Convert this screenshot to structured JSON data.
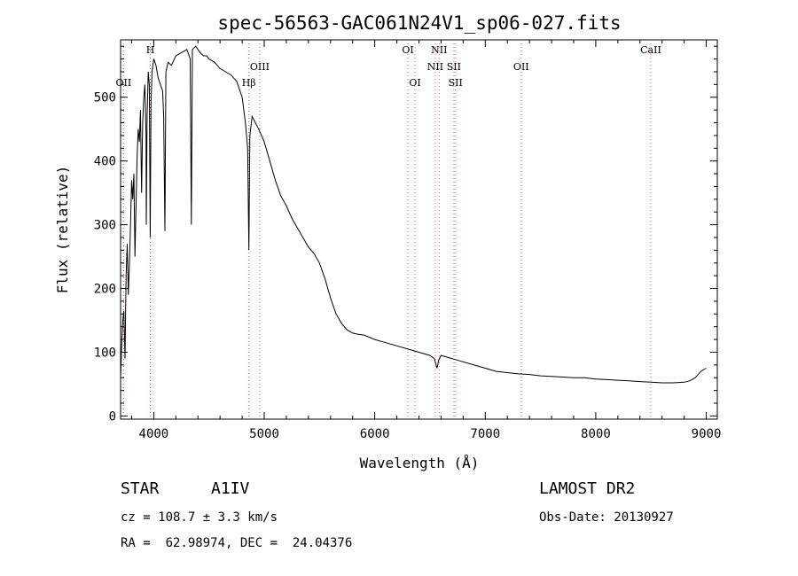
{
  "chart_data": {
    "type": "line",
    "title": "spec-56563-GAC061N24V1_sp06-027.fits",
    "xlabel": "Wavelength (Å)",
    "ylabel": "Flux (relative)",
    "xlim": [
      3700,
      9100
    ],
    "ylim": [
      -5,
      590
    ],
    "xticks": [
      "4000",
      "5000",
      "6000",
      "7000",
      "8000",
      "9000"
    ],
    "yticks": [
      "0",
      "100",
      "200",
      "300",
      "400",
      "500"
    ],
    "spectral_lines": [
      {
        "label": "OII",
        "wavelength": 3727,
        "row": 2
      },
      {
        "label": "H",
        "wavelength": 3969,
        "row": 0
      },
      {
        "label": "Hβ",
        "wavelength": 4861,
        "row": 2
      },
      {
        "label": "OIII",
        "wavelength": 4959,
        "row": 1
      },
      {
        "label": "OI",
        "wavelength": 6300,
        "row": 0
      },
      {
        "label": "OI",
        "wavelength": 6364,
        "row": 2
      },
      {
        "label": "NII",
        "wavelength": 6548,
        "row": 1
      },
      {
        "label": "NII",
        "wavelength": 6583,
        "row": 0
      },
      {
        "label": "SII",
        "wavelength": 6716,
        "row": 1
      },
      {
        "label": "SII",
        "wavelength": 6731,
        "row": 2
      },
      {
        "label": "OII",
        "wavelength": 7325,
        "row": 1
      },
      {
        "label": "CaII",
        "wavelength": 8498,
        "row": 0
      }
    ],
    "series": [
      {
        "x": [
          3700,
          3710,
          3720,
          3730,
          3740,
          3750,
          3760,
          3770,
          3780,
          3790,
          3800,
          3810,
          3820,
          3830,
          3840,
          3850,
          3860,
          3870,
          3880,
          3890,
          3900,
          3910,
          3920,
          3930,
          3933,
          3940,
          3950,
          3960,
          3968,
          3975,
          3985,
          4000,
          4020,
          4040,
          4060,
          4080,
          4090,
          4101,
          4110,
          4130,
          4160,
          4200,
          4250,
          4300,
          4330,
          4340,
          4350,
          4380,
          4420,
          4450,
          4480,
          4500,
          4550,
          4600,
          4650,
          4700,
          4750,
          4800,
          4830,
          4850,
          4861,
          4870,
          4890,
          4920,
          4950,
          5000,
          5050,
          5100,
          5150,
          5200,
          5250,
          5300,
          5350,
          5400,
          5450,
          5500,
          5550,
          5600,
          5650,
          5700,
          5750,
          5800,
          5850,
          5900,
          6000,
          6100,
          6200,
          6300,
          6400,
          6500,
          6540,
          6563,
          6580,
          6600,
          6700,
          6800,
          6900,
          7000,
          7100,
          7200,
          7300,
          7400,
          7500,
          7600,
          7700,
          7800,
          7900,
          8000,
          8100,
          8200,
          8300,
          8400,
          8500,
          8600,
          8700,
          8800,
          8850,
          8900,
          8950,
          9000
        ],
        "y": [
          60,
          110,
          150,
          165,
          90,
          220,
          270,
          190,
          240,
          300,
          370,
          340,
          380,
          250,
          330,
          410,
          450,
          430,
          480,
          350,
          460,
          500,
          520,
          440,
          300,
          470,
          540,
          520,
          280,
          490,
          540,
          560,
          550,
          530,
          520,
          510,
          470,
          290,
          540,
          555,
          550,
          565,
          570,
          575,
          560,
          300,
          575,
          580,
          570,
          565,
          565,
          560,
          555,
          545,
          540,
          535,
          525,
          500,
          460,
          420,
          260,
          440,
          470,
          460,
          450,
          430,
          400,
          370,
          345,
          330,
          310,
          295,
          280,
          265,
          255,
          240,
          215,
          185,
          160,
          145,
          135,
          130,
          128,
          127,
          120,
          115,
          110,
          105,
          100,
          95,
          90,
          75,
          88,
          95,
          90,
          85,
          80,
          75,
          70,
          68,
          66,
          65,
          63,
          62,
          61,
          60,
          60,
          58,
          57,
          56,
          55,
          54,
          53,
          52,
          52,
          53,
          55,
          60,
          70,
          75
        ]
      }
    ],
    "grid": false
  },
  "info": {
    "class": "STAR",
    "subclass": "A1IV",
    "survey": "LAMOST DR2",
    "cz": "cz = 108.7 ± 3.3 km/s",
    "obs_date": "Obs-Date: 20130927",
    "coords": "RA =  62.98974, DEC =  24.04376"
  },
  "colors": {
    "line": "#000000",
    "marker": "#e06060",
    "axes": "#000000"
  }
}
